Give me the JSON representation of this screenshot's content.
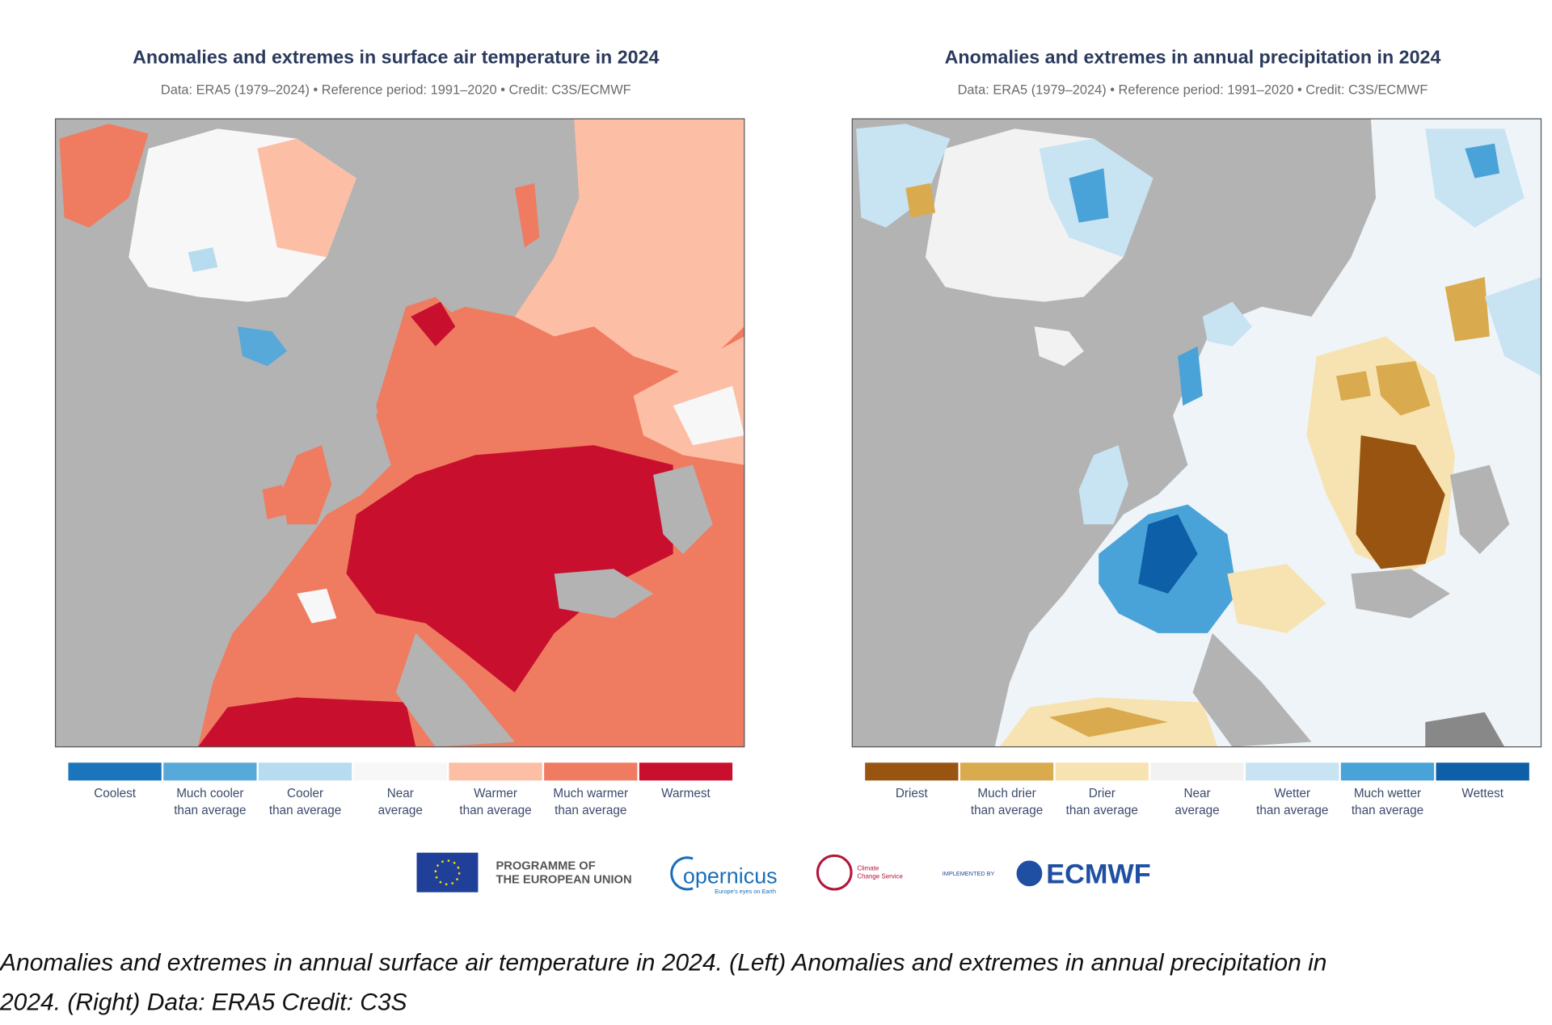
{
  "panels": [
    {
      "title": "Anomalies and extremes in surface air temperature in 2024",
      "subtitle": "Data: ERA5 (1979–2024) • Reference period: 1991–2020 • Credit: C3S/ECMWF",
      "legend": [
        {
          "label": [
            "Coolest"
          ],
          "color": "#1a75bc"
        },
        {
          "label": [
            "Much cooler",
            "than average"
          ],
          "color": "#56a9d8"
        },
        {
          "label": [
            "Cooler",
            "than average"
          ],
          "color": "#b7dbef"
        },
        {
          "label": [
            "Near",
            "average"
          ],
          "color": "#f7f7f7"
        },
        {
          "label": [
            "Warmer",
            "than average"
          ],
          "color": "#fcbfa6"
        },
        {
          "label": [
            "Much warmer",
            "than average"
          ],
          "color": "#ef7c61"
        },
        {
          "label": [
            "Warmest"
          ],
          "color": "#c8102e"
        }
      ]
    },
    {
      "title": "Anomalies and extremes in annual precipitation in 2024",
      "subtitle": "Data: ERA5 (1979–2024) • Reference period: 1991–2020 • Credit: C3S/ECMWF",
      "legend": [
        {
          "label": [
            "Driest"
          ],
          "color": "#985410"
        },
        {
          "label": [
            "Much drier",
            "than average"
          ],
          "color": "#d9aa4e"
        },
        {
          "label": [
            "Drier",
            "than average"
          ],
          "color": "#f7e3b2"
        },
        {
          "label": [
            "Near",
            "average"
          ],
          "color": "#f2f2f2"
        },
        {
          "label": [
            "Wetter",
            "than average"
          ],
          "color": "#c8e3f2"
        },
        {
          "label": [
            "Much wetter",
            "than average"
          ],
          "color": "#4aa3d8"
        },
        {
          "label": [
            "Wettest"
          ],
          "color": "#0d5fa8"
        }
      ]
    }
  ],
  "logos": {
    "eu": [
      "PROGRAMME OF",
      "THE EUROPEAN UNION"
    ],
    "copernicus": "opernicus",
    "copernicus_tagline": "Europe's eyes on Earth",
    "c3s": [
      "Climate",
      "Change Service"
    ],
    "implemented_by": "IMPLEMENTED BY",
    "ecmwf": "ECMWF"
  },
  "caption": [
    "Anomalies and extremes in annual surface air temperature in 2024. (Left) Anomalies and extremes in annual precipitation in",
    "2024. (Right) Data: ERA5 Credit: C3S"
  ]
}
